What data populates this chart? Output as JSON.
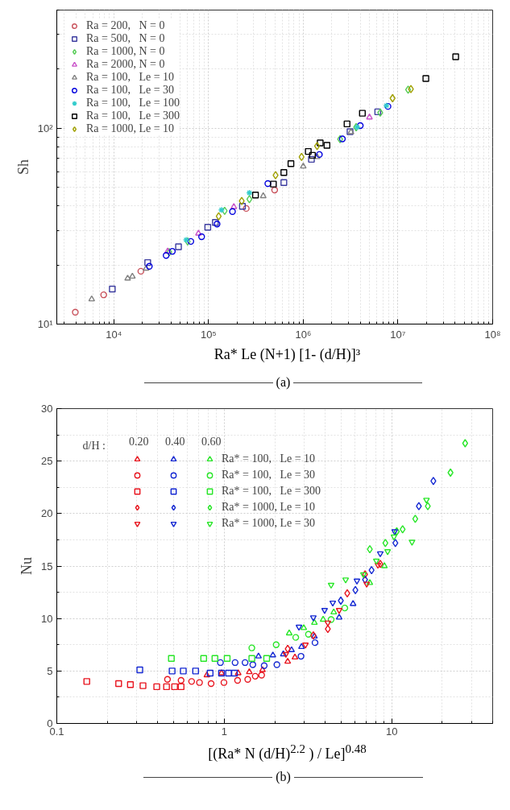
{
  "chart_data": [
    {
      "type": "scatter",
      "xlabel": "Ra* Le (N+1) [1- (d/H)]³",
      "ylabel": "Sh",
      "log": "xy",
      "grid": true,
      "legend": "top left",
      "annotations": [
        "(a)"
      ],
      "xlim": [
        2500,
        100000000
      ],
      "ylim": [
        10,
        400
      ],
      "xticks": [
        {
          "value": 10000,
          "label": "10⁴"
        },
        {
          "value": 100000,
          "label": "10⁵"
        },
        {
          "value": 1000000,
          "label": "10⁶"
        },
        {
          "value": 10000000,
          "label": "10⁷"
        },
        {
          "value": 100000000,
          "label": "10⁸"
        }
      ],
      "yticks": [
        {
          "value": 10,
          "label": "10¹"
        },
        {
          "value": 100,
          "label": "10²"
        }
      ],
      "series": [
        {
          "name": "Ra = 200,   N = 0",
          "color": "#c8505a",
          "marker": "circle",
          "x": [
            3920,
            7820,
            19300,
            250000,
            499000
          ],
          "values": [
            11.5,
            14.1,
            18.6,
            38.9,
            48.3
          ]
        },
        {
          "name": "Ra = 500,   N = 0",
          "color": "#3c3ca0",
          "marker": "square",
          "x": [
            9640,
            22800,
            48200,
            98200,
            118000,
            228000,
            624000,
            1220000,
            3120000,
            6120000
          ],
          "values": [
            15.1,
            20.6,
            24.8,
            31.2,
            33.0,
            39.9,
            52.7,
            69.3,
            95.9,
            121
          ]
        },
        {
          "name": "Ra = 1000, N = 0",
          "color": "#55cc55",
          "marker": "diamond",
          "x": [
            38500,
            60200,
            148000,
            270000,
            2450000,
            3620000,
            6500000,
            12800000
          ],
          "values": [
            23.3,
            26.4,
            37.8,
            43.4,
            87.7,
            101,
            120,
            157
          ]
        },
        {
          "name": "Ra = 2000, N = 0",
          "color": "#c850c8",
          "marker": "triangle",
          "x": [
            37000,
            78300,
            185000,
            5000000
          ],
          "values": [
            23.5,
            29.0,
            39.6,
            113.5
          ]
        },
        {
          "name": "Ra = 100,   Le = 10",
          "color": "#808080",
          "marker": "triangle",
          "x": [
            5840,
            14000,
            15700,
            21900,
            378000,
            1000000,
            1400000,
            3190000
          ],
          "values": [
            13.4,
            17.1,
            17.5,
            19.2,
            45.0,
            63.8,
            71.3,
            95.5
          ]
        },
        {
          "name": "Ra = 100,   Le = 30",
          "color": "#0000dd",
          "marker": "circle",
          "x": [
            23700,
            35700,
            41500,
            65000,
            84500,
            123000,
            179000,
            423000,
            1480000,
            2590000,
            4000000,
            7840000
          ],
          "values": [
            19.7,
            22.4,
            23.5,
            26.4,
            27.9,
            32.4,
            37.5,
            52.1,
            73.3,
            88.1,
            103,
            129
          ]
        },
        {
          "name": "Ra = 100,   Le = 100",
          "color": "#33cccc",
          "marker": "cross",
          "x": [
            58000,
            137000,
            270000,
            3710000,
            7550000
          ],
          "values": [
            26.9,
            38.2,
            46.7,
            101,
            130
          ]
        },
        {
          "name": "Ra = 100,   Le = 300",
          "color": "#000000",
          "marker": "square",
          "x": [
            313000,
            484000,
            624000,
            741000,
            1130000,
            1250000,
            1510000,
            1780000,
            2900000,
            4210000,
            19700000,
            40700000
          ],
          "values": [
            45.5,
            51.8,
            59.3,
            65.8,
            76.0,
            72.6,
            84.0,
            81.6,
            105,
            119,
            179,
            231
          ]
        },
        {
          "name": "Ra = 1000, Le = 10",
          "color": "#a0a000",
          "marker": "diamond",
          "x": [
            128000,
            224000,
            510000,
            960000,
            1400000,
            8770000,
            13700000
          ],
          "values": [
            35.5,
            42.5,
            57.5,
            71.3,
            80.9,
            142,
            158
          ]
        }
      ]
    },
    {
      "type": "scatter",
      "xlabel": "[(Ra* N (d/H)$^{2.2}$ ) / Le]$^{0.48}$",
      "ylabel": "Nu",
      "log": "x",
      "grid": true,
      "legend": "top left",
      "legend_title": "d/H :",
      "annotations": [
        "0.20",
        "0.40",
        "0.60",
        "(b)"
      ],
      "xlim": [
        0.1,
        40
      ],
      "ylim": [
        0,
        30
      ],
      "xticks": [
        0.1,
        1,
        10
      ],
      "yticks": [
        0,
        5,
        10,
        15,
        20,
        25,
        30
      ],
      "series": [
        {
          "color": "#e8141e",
          "marker": "triangle",
          "x": [
            0.787,
            0.962,
            1.21,
            1.41,
            1.69,
            2.39,
            2.64
          ],
          "values": [
            4.6,
            4.8,
            4.8,
            4.9,
            5.1,
            5.9,
            6.3
          ]
        },
        {
          "color": "#1428d2",
          "marker": "triangle",
          "x": [
            1.6,
            1.95,
            2.25,
            2.52,
            2.89,
            3.45,
            4.85,
            5.87
          ],
          "values": [
            6.4,
            6.5,
            6.6,
            7.0,
            7.3,
            8.3,
            10.1,
            11.4
          ]
        },
        {
          "name": "Ra* = 100,   Le = 10",
          "color": "#28e628",
          "marker": "triangle",
          "x": [
            2.44,
            2.98,
            3.45,
            3.89,
            4.5,
            7.39,
            9.03
          ],
          "values": [
            8.6,
            9.1,
            9.6,
            9.9,
            10.6,
            13.4,
            15.0
          ]
        },
        {
          "color": "#e8141e",
          "marker": "circle",
          "x": [
            0.458,
            0.552,
            0.638,
            0.711,
            0.834,
            0.995,
            1.2,
            1.38,
            1.53,
            1.67
          ],
          "values": [
            4.2,
            4.1,
            4.0,
            3.9,
            3.8,
            3.9,
            4.1,
            4.2,
            4.5,
            4.6
          ]
        },
        {
          "color": "#1428d2",
          "marker": "circle",
          "x": [
            0.948,
            1.16,
            1.33,
            1.48,
            1.73,
            2.06,
            2.87,
            3.48
          ],
          "values": [
            5.8,
            5.8,
            5.8,
            5.6,
            5.5,
            5.6,
            6.4,
            7.7
          ]
        },
        {
          "name": "Ra* = 100,   Le = 30",
          "color": "#28e628",
          "marker": "circle",
          "x": [
            1.46,
            2.04,
            2.67,
            3.18,
            4.34,
            5.24
          ],
          "values": [
            7.2,
            7.5,
            8.2,
            8.5,
            9.9,
            11.0
          ]
        },
        {
          "color": "#e8141e",
          "marker": "square",
          "x": [
            0.151,
            0.234,
            0.275,
            0.327,
            0.395,
            0.452,
            0.505,
            0.552
          ],
          "values": [
            4.0,
            3.8,
            3.7,
            3.6,
            3.5,
            3.5,
            3.5,
            3.5
          ]
        },
        {
          "color": "#1428d2",
          "marker": "square",
          "x": [
            0.313,
            0.488,
            0.569,
            0.674,
            0.823,
            0.962,
            1.06,
            1.15
          ],
          "values": [
            5.1,
            5.0,
            5.0,
            5.0,
            4.8,
            4.8,
            4.8,
            4.8
          ]
        },
        {
          "name": "Ra* = 100,   Le = 300",
          "color": "#28e628",
          "marker": "square",
          "x": [
            0.483,
            0.753,
            0.879,
            1.04,
            1.46,
            1.79
          ],
          "values": [
            6.2,
            6.2,
            6.2,
            6.2,
            6.2,
            6.2
          ]
        },
        {
          "color": "#e8141e",
          "marker": "diamond",
          "x": [
            2.39,
            3.4,
            4.15,
            5.42,
            6.92,
            8.53
          ],
          "values": [
            7.1,
            8.4,
            9.0,
            12.4,
            14.2,
            15.2
          ]
        },
        {
          "color": "#1428d2",
          "marker": "diamond",
          "x": [
            4.96,
            6.06,
            6.92,
            7.57,
            10.5,
            14.5,
            17.7
          ],
          "values": [
            11.7,
            12.7,
            13.7,
            14.6,
            17.2,
            20.7,
            23.1
          ]
        },
        {
          "name": "Ra* = 1000, Le = 10",
          "color": "#28e628",
          "marker": "diamond",
          "x": [
            7.39,
            9.15,
            10.7,
            11.6,
            13.8,
            16.4,
            22.4,
            27.4
          ],
          "values": [
            16.6,
            17.2,
            18.3,
            18.5,
            19.5,
            20.7,
            23.9,
            26.7
          ]
        },
        {
          "color": "#e8141e",
          "x": [
            2.33,
            3.05,
            4.15,
            4.85,
            7.08,
            8.26
          ],
          "values": [
            6.6,
            7.5,
            9.6,
            10.8,
            13.3,
            15.1
          ]
        },
        {
          "color": "#1428d2",
          "x": [
            2.79,
            3.4,
            3.97,
            4.44,
            6.19,
            8.53,
            10.4
          ],
          "values": [
            9.2,
            10.1,
            10.8,
            11.5,
            13.6,
            16.2,
            18.3
          ]
        },
        {
          "name": "Ra* = 1000, Le = 30",
          "color": "#28e628",
          "x": [
            4.34,
            5.3,
            6.77,
            8.08,
            9.44,
            10.3,
            13.2,
            16.1
          ],
          "values": [
            13.2,
            13.7,
            14.2,
            15.5,
            16.4,
            17.8,
            17.3,
            21.3
          ]
        }
      ]
    }
  ]
}
